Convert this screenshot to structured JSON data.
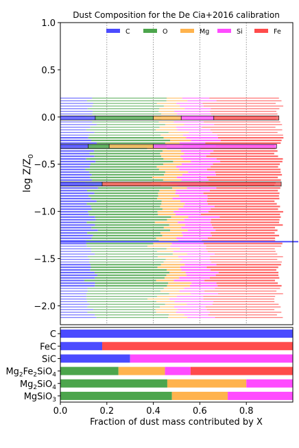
{
  "chart_data": [
    {
      "type": "bar",
      "orientation": "horizontal-stacked",
      "title": "Dust Composition for the De Cia+2016 calibration",
      "ylabel": "log Z/Z₀",
      "xlim": [
        0,
        1
      ],
      "ylim": [
        -2.2,
        1.0
      ],
      "yticks": [
        "1.0",
        "0.5",
        "0.0",
        "−0.5",
        "−1.0",
        "−1.5",
        "−2.0"
      ],
      "ytick_values": [
        1.0,
        0.5,
        0.0,
        -0.5,
        -1.0,
        -1.5,
        -2.0
      ],
      "vlines_x": [
        0.2,
        0.4,
        0.6,
        0.8
      ],
      "legend_placement": "top",
      "series": [
        {
          "name": "C",
          "color": "#4b4bff"
        },
        {
          "name": "O",
          "color": "#4ca54c"
        },
        {
          "name": "Mg",
          "color": "#ffb34d"
        },
        {
          "name": "Si",
          "color": "#ff4bff"
        },
        {
          "name": "Fe",
          "color": "#ff4b4b"
        }
      ],
      "highlighted_bars": [
        {
          "logz": -0.01,
          "fractions": [
            0.15,
            0.25,
            0.12,
            0.14,
            0.28
          ]
        },
        {
          "logz": -0.31,
          "fractions": [
            0.12,
            0.09,
            0.19,
            0.53,
            0.0
          ]
        },
        {
          "logz": -0.71,
          "fractions": [
            0.18,
            0.0,
            0.0,
            0.0,
            0.77
          ]
        }
      ],
      "highlighted_hline": {
        "logz": -1.32,
        "color": "#4b4bff"
      }
    },
    {
      "type": "bar",
      "orientation": "horizontal-stacked",
      "xlabel": "Fraction of dust mass contributed by X",
      "xlim": [
        0,
        1
      ],
      "xticks": [
        "0.0",
        "0.2",
        "0.4",
        "0.6",
        "0.8"
      ],
      "xtick_values": [
        0.0,
        0.2,
        0.4,
        0.6,
        0.8
      ],
      "categories": [
        "C",
        "FeC",
        "SiC",
        "Mg₂Fe₂SiO₄",
        "Mg₂SiO₄",
        "MgSiO₃"
      ],
      "category_parts": [
        [
          [
            "C",
            ""
          ]
        ],
        [
          [
            "FeC",
            ""
          ]
        ],
        [
          [
            "SiC",
            ""
          ]
        ],
        [
          [
            "Mg",
            ""
          ],
          [
            "2",
            "sub"
          ],
          [
            "Fe",
            ""
          ],
          [
            "2",
            "sub"
          ],
          [
            "SiO",
            ""
          ],
          [
            "4",
            "sub"
          ]
        ],
        [
          [
            "Mg",
            ""
          ],
          [
            "2",
            "sub"
          ],
          [
            "SiO",
            ""
          ],
          [
            "4",
            "sub"
          ]
        ],
        [
          [
            "MgSiO",
            ""
          ],
          [
            "3",
            "sub"
          ]
        ]
      ],
      "series_order": [
        "C",
        "O",
        "Mg",
        "Si",
        "Fe"
      ],
      "values": [
        [
          1.0,
          0.0,
          0.0,
          0.0,
          0.0
        ],
        [
          0.18,
          0.0,
          0.0,
          0.0,
          0.82
        ],
        [
          0.3,
          0.0,
          0.0,
          0.7,
          0.0
        ],
        [
          0.0,
          0.25,
          0.2,
          0.11,
          0.44
        ],
        [
          0.0,
          0.46,
          0.34,
          0.2,
          0.0
        ],
        [
          0.0,
          0.48,
          0.24,
          0.28,
          0.0
        ]
      ]
    }
  ]
}
